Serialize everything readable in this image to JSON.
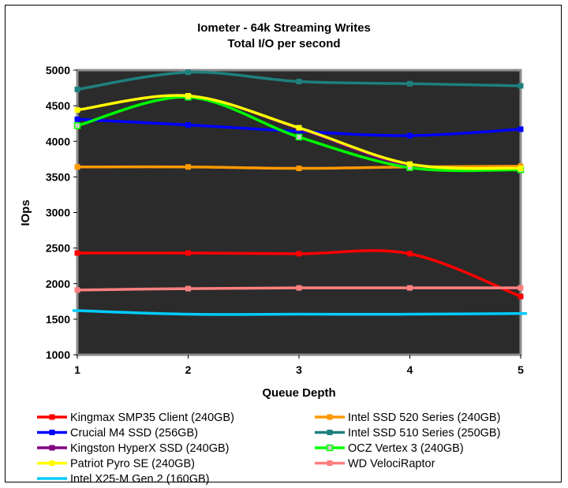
{
  "chart_data": {
    "type": "line",
    "title": "Iometer - 64k Streaming Writes",
    "subtitle": "Total I/O per second",
    "xlabel": "Queue Depth",
    "ylabel": "IOps",
    "x": [
      1,
      2,
      3,
      4,
      5
    ],
    "x_tick_labels": [
      "1",
      "2",
      "3",
      "4",
      "5"
    ],
    "y_tick_labels": [
      "1000",
      "1500",
      "2000",
      "2500",
      "3000",
      "3500",
      "4000",
      "4500",
      "5000"
    ],
    "ylim": [
      1000,
      5000
    ],
    "grid": false,
    "plot_background": "#2b2b2b",
    "legend_position": "bottom",
    "series": [
      {
        "name": "Kingmax SMP35 Client (240GB)",
        "color": "#ff0000",
        "marker": "square",
        "values": [
          2430,
          2430,
          2420,
          2420,
          1820
        ]
      },
      {
        "name": "Intel SSD 520 Series (240GB)",
        "color": "#ff9900",
        "marker": "square",
        "values": [
          3640,
          3640,
          3620,
          3640,
          3650
        ]
      },
      {
        "name": "Crucial M4 SSD (256GB)",
        "color": "#0000ff",
        "marker": "square",
        "values": [
          4310,
          4230,
          4140,
          4080,
          4170
        ]
      },
      {
        "name": "Intel SSD 510 Series (250GB)",
        "color": "#1f7f7f",
        "marker": "square",
        "values": [
          4730,
          4970,
          4840,
          4810,
          4780
        ]
      },
      {
        "name": "Kingston HyperX SSD (240GB)",
        "color": "#800080",
        "marker": "square",
        "values": [
          4440,
          4640,
          4180,
          3660,
          3620
        ]
      },
      {
        "name": "OCZ Vertex 3 (240GB)",
        "color": "#00ff00",
        "marker": "square-open",
        "values": [
          4220,
          4620,
          4060,
          3630,
          3600
        ]
      },
      {
        "name": "Patriot Pyro SE (240GB)",
        "color": "#ffff00",
        "marker": "square",
        "values": [
          4440,
          4640,
          4190,
          3680,
          3620
        ]
      },
      {
        "name": "WD VelociRaptor",
        "color": "#ff8080",
        "marker": "square",
        "values": [
          1910,
          1930,
          1940,
          1940,
          1940
        ]
      },
      {
        "name": "Intel X25-M Gen.2 (160GB)",
        "color": "#00ccff",
        "marker": "none",
        "values": [
          1620,
          1570,
          1570,
          1570,
          1580
        ]
      }
    ]
  }
}
